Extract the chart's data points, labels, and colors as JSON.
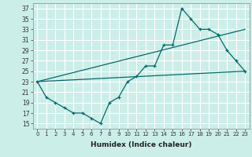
{
  "xlabel": "Humidex (Indice chaleur)",
  "bg_color": "#cceee8",
  "grid_color": "#ffffff",
  "line_color": "#006b6b",
  "line1_x": [
    0,
    1,
    2,
    3,
    4,
    5,
    6,
    7,
    8,
    9,
    10,
    11,
    12,
    13,
    14,
    15,
    16,
    17,
    18,
    19,
    20,
    21,
    22,
    23
  ],
  "line1_y": [
    23,
    20,
    19,
    18,
    17,
    17,
    16,
    15,
    19,
    20,
    23,
    24,
    26,
    26,
    30,
    30,
    37,
    35,
    33,
    33,
    32,
    29,
    27,
    25
  ],
  "line2_x": [
    0,
    23
  ],
  "line2_y": [
    23,
    33
  ],
  "line3_x": [
    0,
    23
  ],
  "line3_y": [
    23,
    25
  ],
  "ylim": [
    14,
    38
  ],
  "yticks": [
    15,
    17,
    19,
    21,
    23,
    25,
    27,
    29,
    31,
    33,
    35,
    37
  ],
  "xticks": [
    0,
    1,
    2,
    3,
    4,
    5,
    6,
    7,
    8,
    9,
    10,
    11,
    12,
    13,
    14,
    15,
    16,
    17,
    18,
    19,
    20,
    21,
    22,
    23
  ],
  "figw": 3.2,
  "figh": 2.0,
  "dpi": 100
}
